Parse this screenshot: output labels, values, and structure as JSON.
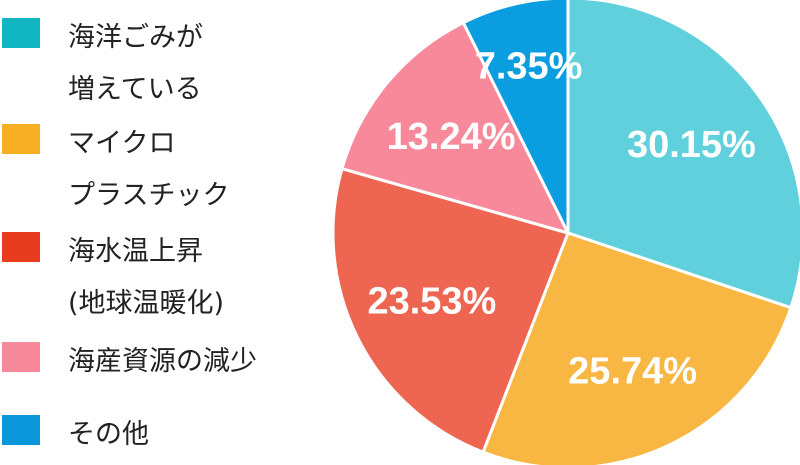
{
  "chart_data": {
    "type": "pie",
    "title": "",
    "slices": [
      {
        "label": "海洋ごみが\n増えている",
        "value": 30.15,
        "display": "30.15%",
        "color": "#5fd0dc",
        "legend_color": "#12b5c2"
      },
      {
        "label": "マイクロ\nプラスチック",
        "value": 25.74,
        "display": "25.74%",
        "color": "#f7b742",
        "legend_color": "#f6ae22"
      },
      {
        "label": "海水温上昇\n(地球温暖化)",
        "value": 23.53,
        "display": "23.53%",
        "color": "#ee6552",
        "legend_color": "#e83c1f"
      },
      {
        "label": "海産資源の減少",
        "value": 13.24,
        "display": "13.24%",
        "color": "#f7899a",
        "legend_color": "#f7899a"
      },
      {
        "label": "その他",
        "value": 7.35,
        "display": "7.35%",
        "color": "#0a9ee0",
        "legend_color": "#0a96d8"
      }
    ],
    "legend_position": "left",
    "start_angle": "12 o'clock, clockwise"
  }
}
